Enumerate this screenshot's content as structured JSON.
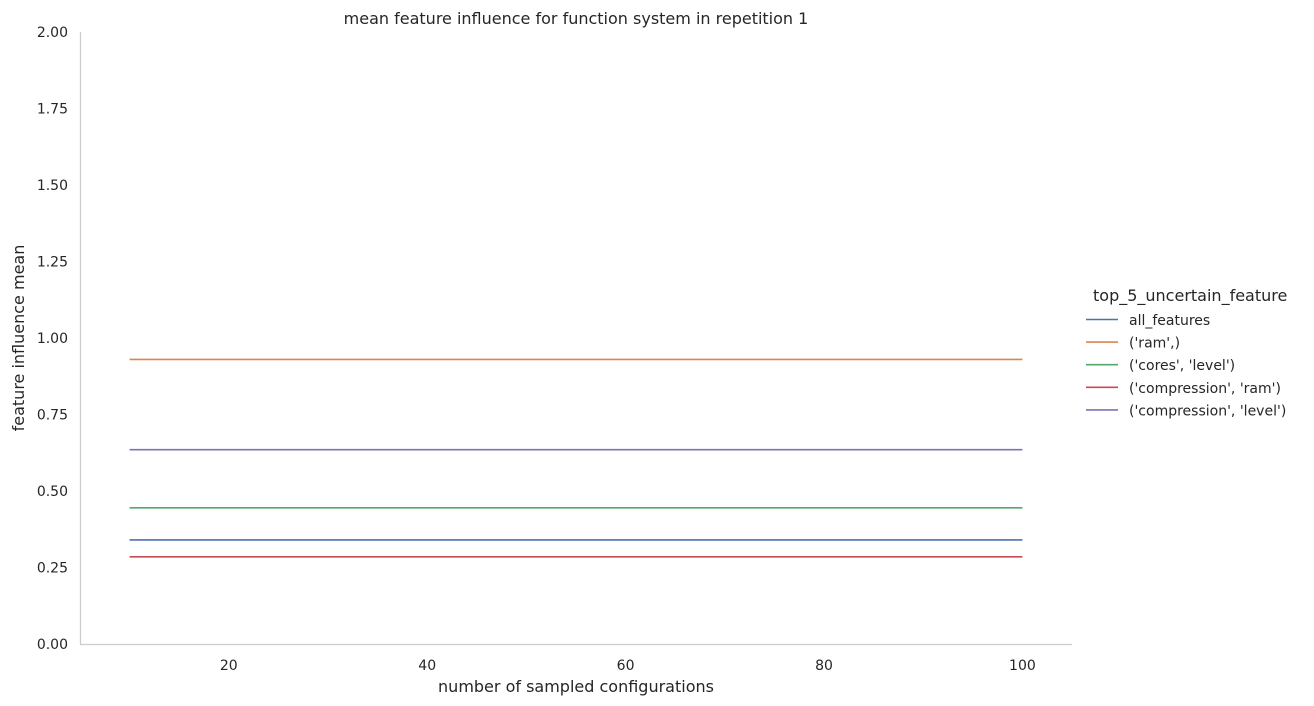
{
  "chart_data": {
    "type": "line",
    "title": "mean feature influence for function system in repetition 1",
    "xlabel": "number of sampled configurations",
    "ylabel": "feature influence mean",
    "xlim": [
      5,
      105
    ],
    "ylim": [
      0,
      2
    ],
    "xticks": [
      20,
      40,
      60,
      80,
      100
    ],
    "xtick_labels": [
      "20",
      "40",
      "60",
      "80",
      "100"
    ],
    "yticks": [
      0,
      0.25,
      0.5,
      0.75,
      1,
      1.25,
      1.5,
      1.75,
      2
    ],
    "ytick_labels": [
      "0.00",
      "0.25",
      "0.50",
      "0.75",
      "1.00",
      "1.25",
      "1.50",
      "1.75",
      "2.00"
    ],
    "grid": false,
    "legend": {
      "title": "top_5_uncertain_feature",
      "placement": "right"
    },
    "series": [
      {
        "name": "all_features",
        "color": "#4c72b0",
        "x": [
          10,
          100
        ],
        "y": [
          0.34,
          0.34
        ]
      },
      {
        "name": "('ram',)",
        "color": "#dd8452",
        "x": [
          10,
          100
        ],
        "y": [
          0.93,
          0.93
        ]
      },
      {
        "name": "('cores', 'level')",
        "color": "#55a868",
        "x": [
          10,
          100
        ],
        "y": [
          0.445,
          0.445
        ]
      },
      {
        "name": "('compression', 'ram')",
        "color": "#c44e52",
        "x": [
          10,
          100
        ],
        "y": [
          0.285,
          0.285
        ]
      },
      {
        "name": "('compression', 'level')",
        "color": "#8172b3",
        "x": [
          10,
          100
        ],
        "y": [
          0.635,
          0.635
        ]
      }
    ]
  }
}
